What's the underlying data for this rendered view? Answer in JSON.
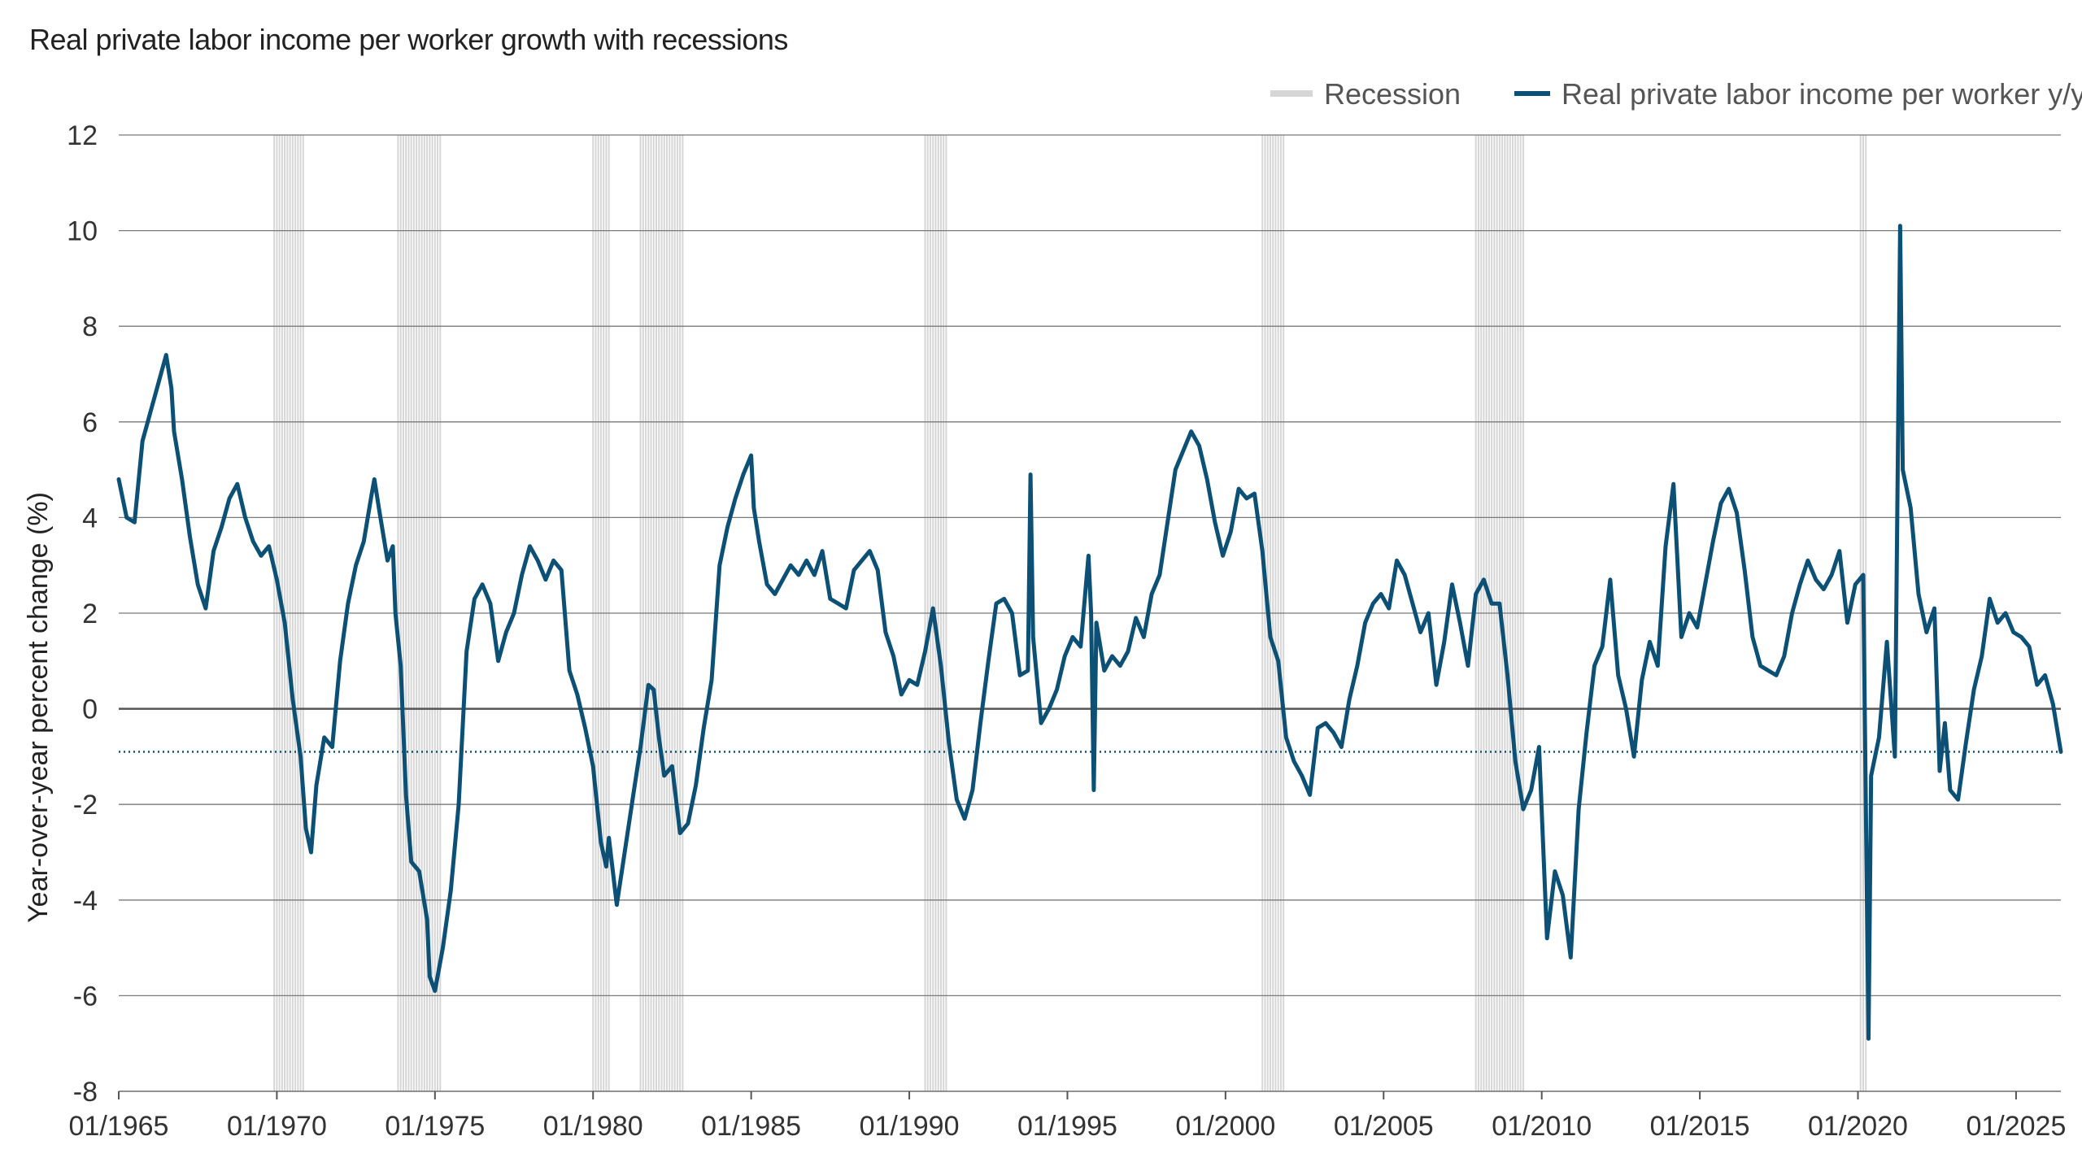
{
  "title": "Real private labor income per worker growth with recessions",
  "chart_data": {
    "type": "line",
    "title": "Real private labor income per worker growth with recessions",
    "xlabel": "",
    "ylabel": "Year-over-year percent change (%)",
    "ylim": [
      -8,
      12
    ],
    "xlim": [
      "01/1965",
      "06/2026"
    ],
    "y_ticks": [
      "12",
      "10",
      "8",
      "6",
      "4",
      "2",
      "0",
      "-2",
      "-4",
      "-6",
      "-8"
    ],
    "x_ticks": [
      "01/1965",
      "01/1970",
      "01/1975",
      "01/1980",
      "01/1985",
      "01/1990",
      "01/1995",
      "01/2000",
      "01/2005",
      "01/2010",
      "01/2015",
      "01/2020",
      "01/2025"
    ],
    "grid": true,
    "legend_position": "top-right",
    "colors": {
      "series": "#0c5175",
      "recession": "#d6d6d6",
      "grid": "#7a7a7a",
      "zero": "#555555",
      "reference": "#0c5175"
    },
    "reference_line": {
      "y": -0.9,
      "style": "dotted"
    },
    "legend": [
      {
        "label": "Recession",
        "color": "#d6d6d6"
      },
      {
        "label": "Real private labor income per worker y/y",
        "color": "#0c5175"
      }
    ],
    "recessions": [
      {
        "start": "12/1969",
        "end": "11/1970"
      },
      {
        "start": "11/1973",
        "end": "03/1975"
      },
      {
        "start": "01/1980",
        "end": "07/1980"
      },
      {
        "start": "07/1981",
        "end": "11/1982"
      },
      {
        "start": "07/1990",
        "end": "03/1991"
      },
      {
        "start": "03/2001",
        "end": "11/2001"
      },
      {
        "start": "12/2007",
        "end": "06/2009"
      },
      {
        "start": "02/2020",
        "end": "04/2020"
      }
    ],
    "series": [
      {
        "name": "Real private labor income per worker y/y",
        "points": [
          [
            "01/1965",
            4.8
          ],
          [
            "04/1965",
            4.0
          ],
          [
            "07/1965",
            3.9
          ],
          [
            "10/1965",
            5.6
          ],
          [
            "01/1966",
            6.2
          ],
          [
            "04/1966",
            6.8
          ],
          [
            "07/1966",
            7.4
          ],
          [
            "09/1966",
            6.7
          ],
          [
            "10/1966",
            5.8
          ],
          [
            "01/1967",
            4.8
          ],
          [
            "04/1967",
            3.6
          ],
          [
            "07/1967",
            2.6
          ],
          [
            "10/1967",
            2.1
          ],
          [
            "01/1968",
            3.3
          ],
          [
            "04/1968",
            3.8
          ],
          [
            "07/1968",
            4.4
          ],
          [
            "10/1968",
            4.7
          ],
          [
            "01/1969",
            4.0
          ],
          [
            "04/1969",
            3.5
          ],
          [
            "07/1969",
            3.2
          ],
          [
            "10/1969",
            3.4
          ],
          [
            "01/1970",
            2.7
          ],
          [
            "04/1970",
            1.8
          ],
          [
            "07/1970",
            0.2
          ],
          [
            "10/1970",
            -1.0
          ],
          [
            "12/1970",
            -2.5
          ],
          [
            "02/1971",
            -3.0
          ],
          [
            "04/1971",
            -1.6
          ],
          [
            "07/1971",
            -0.6
          ],
          [
            "10/1971",
            -0.8
          ],
          [
            "01/1972",
            1.0
          ],
          [
            "04/1972",
            2.2
          ],
          [
            "07/1972",
            3.0
          ],
          [
            "10/1972",
            3.5
          ],
          [
            "01/1973",
            4.5
          ],
          [
            "02/1973",
            4.8
          ],
          [
            "04/1973",
            4.1
          ],
          [
            "07/1973",
            3.1
          ],
          [
            "09/1973",
            3.4
          ],
          [
            "10/1973",
            2.0
          ],
          [
            "12/1973",
            0.9
          ],
          [
            "02/1974",
            -1.8
          ],
          [
            "04/1974",
            -3.2
          ],
          [
            "07/1974",
            -3.4
          ],
          [
            "10/1974",
            -4.4
          ],
          [
            "11/1974",
            -5.6
          ],
          [
            "01/1975",
            -5.9
          ],
          [
            "04/1975",
            -5.0
          ],
          [
            "07/1975",
            -3.8
          ],
          [
            "10/1975",
            -2.0
          ],
          [
            "01/1976",
            1.2
          ],
          [
            "04/1976",
            2.3
          ],
          [
            "07/1976",
            2.6
          ],
          [
            "10/1976",
            2.2
          ],
          [
            "01/1977",
            1.0
          ],
          [
            "04/1977",
            1.6
          ],
          [
            "07/1977",
            2.0
          ],
          [
            "10/1977",
            2.8
          ],
          [
            "01/1978",
            3.4
          ],
          [
            "04/1978",
            3.1
          ],
          [
            "07/1978",
            2.7
          ],
          [
            "10/1978",
            3.1
          ],
          [
            "01/1979",
            2.9
          ],
          [
            "04/1979",
            0.8
          ],
          [
            "07/1979",
            0.3
          ],
          [
            "10/1979",
            -0.4
          ],
          [
            "01/1980",
            -1.2
          ],
          [
            "04/1980",
            -2.8
          ],
          [
            "06/1980",
            -3.3
          ],
          [
            "07/1980",
            -2.7
          ],
          [
            "10/1980",
            -4.1
          ],
          [
            "01/1981",
            -3.0
          ],
          [
            "04/1981",
            -1.9
          ],
          [
            "07/1981",
            -0.8
          ],
          [
            "10/1981",
            0.5
          ],
          [
            "12/1981",
            0.4
          ],
          [
            "02/1982",
            -0.6
          ],
          [
            "04/1982",
            -1.4
          ],
          [
            "07/1982",
            -1.2
          ],
          [
            "10/1982",
            -2.6
          ],
          [
            "01/1983",
            -2.4
          ],
          [
            "04/1983",
            -1.6
          ],
          [
            "07/1983",
            -0.4
          ],
          [
            "10/1983",
            0.6
          ],
          [
            "01/1984",
            3.0
          ],
          [
            "04/1984",
            3.8
          ],
          [
            "07/1984",
            4.4
          ],
          [
            "10/1984",
            4.9
          ],
          [
            "01/1985",
            5.3
          ],
          [
            "02/1985",
            4.2
          ],
          [
            "04/1985",
            3.5
          ],
          [
            "07/1985",
            2.6
          ],
          [
            "10/1985",
            2.4
          ],
          [
            "01/1986",
            2.7
          ],
          [
            "04/1986",
            3.0
          ],
          [
            "07/1986",
            2.8
          ],
          [
            "10/1986",
            3.1
          ],
          [
            "01/1987",
            2.8
          ],
          [
            "04/1987",
            3.3
          ],
          [
            "07/1987",
            2.3
          ],
          [
            "10/1987",
            2.2
          ],
          [
            "01/1988",
            2.1
          ],
          [
            "04/1988",
            2.9
          ],
          [
            "07/1988",
            3.1
          ],
          [
            "10/1988",
            3.3
          ],
          [
            "01/1989",
            2.9
          ],
          [
            "04/1989",
            1.6
          ],
          [
            "07/1989",
            1.1
          ],
          [
            "10/1989",
            0.3
          ],
          [
            "01/1990",
            0.6
          ],
          [
            "04/1990",
            0.5
          ],
          [
            "07/1990",
            1.2
          ],
          [
            "10/1990",
            2.1
          ],
          [
            "01/1991",
            0.9
          ],
          [
            "04/1991",
            -0.7
          ],
          [
            "07/1991",
            -1.9
          ],
          [
            "10/1991",
            -2.3
          ],
          [
            "01/1992",
            -1.7
          ],
          [
            "04/1992",
            -0.3
          ],
          [
            "07/1992",
            1.0
          ],
          [
            "10/1992",
            2.2
          ],
          [
            "01/1993",
            2.3
          ],
          [
            "04/1993",
            2.0
          ],
          [
            "07/1993",
            0.7
          ],
          [
            "10/1993",
            0.8
          ],
          [
            "11/1993",
            4.9
          ],
          [
            "12/1993",
            1.5
          ],
          [
            "03/1994",
            -0.3
          ],
          [
            "06/1994",
            0.0
          ],
          [
            "09/1994",
            0.4
          ],
          [
            "12/1994",
            1.1
          ],
          [
            "03/1995",
            1.5
          ],
          [
            "06/1995",
            1.3
          ],
          [
            "09/1995",
            3.2
          ],
          [
            "10/1995",
            2.0
          ],
          [
            "11/1995",
            -1.7
          ],
          [
            "12/1995",
            1.8
          ],
          [
            "03/1996",
            0.8
          ],
          [
            "06/1996",
            1.1
          ],
          [
            "09/1996",
            0.9
          ],
          [
            "12/1996",
            1.2
          ],
          [
            "03/1997",
            1.9
          ],
          [
            "06/1997",
            1.5
          ],
          [
            "09/1997",
            2.4
          ],
          [
            "12/1997",
            2.8
          ],
          [
            "03/1998",
            3.9
          ],
          [
            "06/1998",
            5.0
          ],
          [
            "09/1998",
            5.4
          ],
          [
            "12/1998",
            5.8
          ],
          [
            "03/1999",
            5.5
          ],
          [
            "06/1999",
            4.8
          ],
          [
            "09/1999",
            3.9
          ],
          [
            "12/1999",
            3.2
          ],
          [
            "03/2000",
            3.7
          ],
          [
            "06/2000",
            4.6
          ],
          [
            "09/2000",
            4.4
          ],
          [
            "12/2000",
            4.5
          ],
          [
            "03/2001",
            3.3
          ],
          [
            "06/2001",
            1.5
          ],
          [
            "09/2001",
            1.0
          ],
          [
            "12/2001",
            -0.6
          ],
          [
            "03/2002",
            -1.1
          ],
          [
            "06/2002",
            -1.4
          ],
          [
            "09/2002",
            -1.8
          ],
          [
            "12/2002",
            -0.4
          ],
          [
            "03/2003",
            -0.3
          ],
          [
            "06/2003",
            -0.5
          ],
          [
            "09/2003",
            -0.8
          ],
          [
            "12/2003",
            0.2
          ],
          [
            "03/2004",
            0.9
          ],
          [
            "06/2004",
            1.8
          ],
          [
            "09/2004",
            2.2
          ],
          [
            "12/2004",
            2.4
          ],
          [
            "03/2005",
            2.1
          ],
          [
            "06/2005",
            3.1
          ],
          [
            "09/2005",
            2.8
          ],
          [
            "12/2005",
            2.2
          ],
          [
            "03/2006",
            1.6
          ],
          [
            "06/2006",
            2.0
          ],
          [
            "09/2006",
            0.5
          ],
          [
            "12/2006",
            1.4
          ],
          [
            "03/2007",
            2.6
          ],
          [
            "06/2007",
            1.8
          ],
          [
            "09/2007",
            0.9
          ],
          [
            "12/2007",
            2.4
          ],
          [
            "03/2008",
            2.7
          ],
          [
            "06/2008",
            2.2
          ],
          [
            "09/2008",
            2.2
          ],
          [
            "12/2008",
            0.7
          ],
          [
            "03/2009",
            -1.1
          ],
          [
            "06/2009",
            -2.1
          ],
          [
            "09/2009",
            -1.7
          ],
          [
            "12/2009",
            -0.8
          ],
          [
            "03/2010",
            -4.8
          ],
          [
            "06/2010",
            -3.4
          ],
          [
            "09/2010",
            -3.9
          ],
          [
            "12/2010",
            -5.2
          ],
          [
            "03/2011",
            -2.1
          ],
          [
            "06/2011",
            -0.5
          ],
          [
            "09/2011",
            0.9
          ],
          [
            "12/2011",
            1.3
          ],
          [
            "03/2012",
            2.7
          ],
          [
            "06/2012",
            0.7
          ],
          [
            "09/2012",
            0.0
          ],
          [
            "12/2012",
            -1.0
          ],
          [
            "03/2013",
            0.6
          ],
          [
            "06/2013",
            1.4
          ],
          [
            "09/2013",
            0.9
          ],
          [
            "12/2013",
            3.4
          ],
          [
            "03/2014",
            4.7
          ],
          [
            "06/2014",
            1.5
          ],
          [
            "09/2014",
            2.0
          ],
          [
            "12/2014",
            1.7
          ],
          [
            "03/2015",
            2.6
          ],
          [
            "06/2015",
            3.5
          ],
          [
            "09/2015",
            4.3
          ],
          [
            "12/2015",
            4.6
          ],
          [
            "03/2016",
            4.1
          ],
          [
            "06/2016",
            2.9
          ],
          [
            "09/2016",
            1.5
          ],
          [
            "12/2016",
            0.9
          ],
          [
            "03/2017",
            0.8
          ],
          [
            "06/2017",
            0.7
          ],
          [
            "09/2017",
            1.1
          ],
          [
            "12/2017",
            2.0
          ],
          [
            "03/2018",
            2.6
          ],
          [
            "06/2018",
            3.1
          ],
          [
            "09/2018",
            2.7
          ],
          [
            "12/2018",
            2.5
          ],
          [
            "03/2019",
            2.8
          ],
          [
            "06/2019",
            3.3
          ],
          [
            "09/2019",
            1.8
          ],
          [
            "12/2019",
            2.6
          ],
          [
            "03/2020",
            2.8
          ],
          [
            "04/2020",
            -2.0
          ],
          [
            "05/2020",
            -6.9
          ],
          [
            "06/2020",
            -1.4
          ],
          [
            "09/2020",
            -0.6
          ],
          [
            "12/2020",
            1.4
          ],
          [
            "03/2021",
            -1.0
          ],
          [
            "05/2021",
            10.1
          ],
          [
            "06/2021",
            5.0
          ],
          [
            "09/2021",
            4.2
          ],
          [
            "12/2021",
            2.4
          ],
          [
            "03/2022",
            1.6
          ],
          [
            "06/2022",
            2.1
          ],
          [
            "08/2022",
            -1.3
          ],
          [
            "10/2022",
            -0.3
          ],
          [
            "12/2022",
            -1.7
          ],
          [
            "03/2023",
            -1.9
          ],
          [
            "06/2023",
            -0.7
          ],
          [
            "09/2023",
            0.4
          ],
          [
            "12/2023",
            1.1
          ],
          [
            "03/2024",
            2.3
          ],
          [
            "06/2024",
            1.8
          ],
          [
            "09/2024",
            2.0
          ],
          [
            "12/2024",
            1.6
          ],
          [
            "03/2025",
            1.5
          ],
          [
            "06/2025",
            1.3
          ],
          [
            "09/2025",
            0.5
          ],
          [
            "12/2025",
            0.7
          ],
          [
            "03/2026",
            0.1
          ],
          [
            "06/2026",
            -0.9
          ]
        ]
      }
    ]
  }
}
